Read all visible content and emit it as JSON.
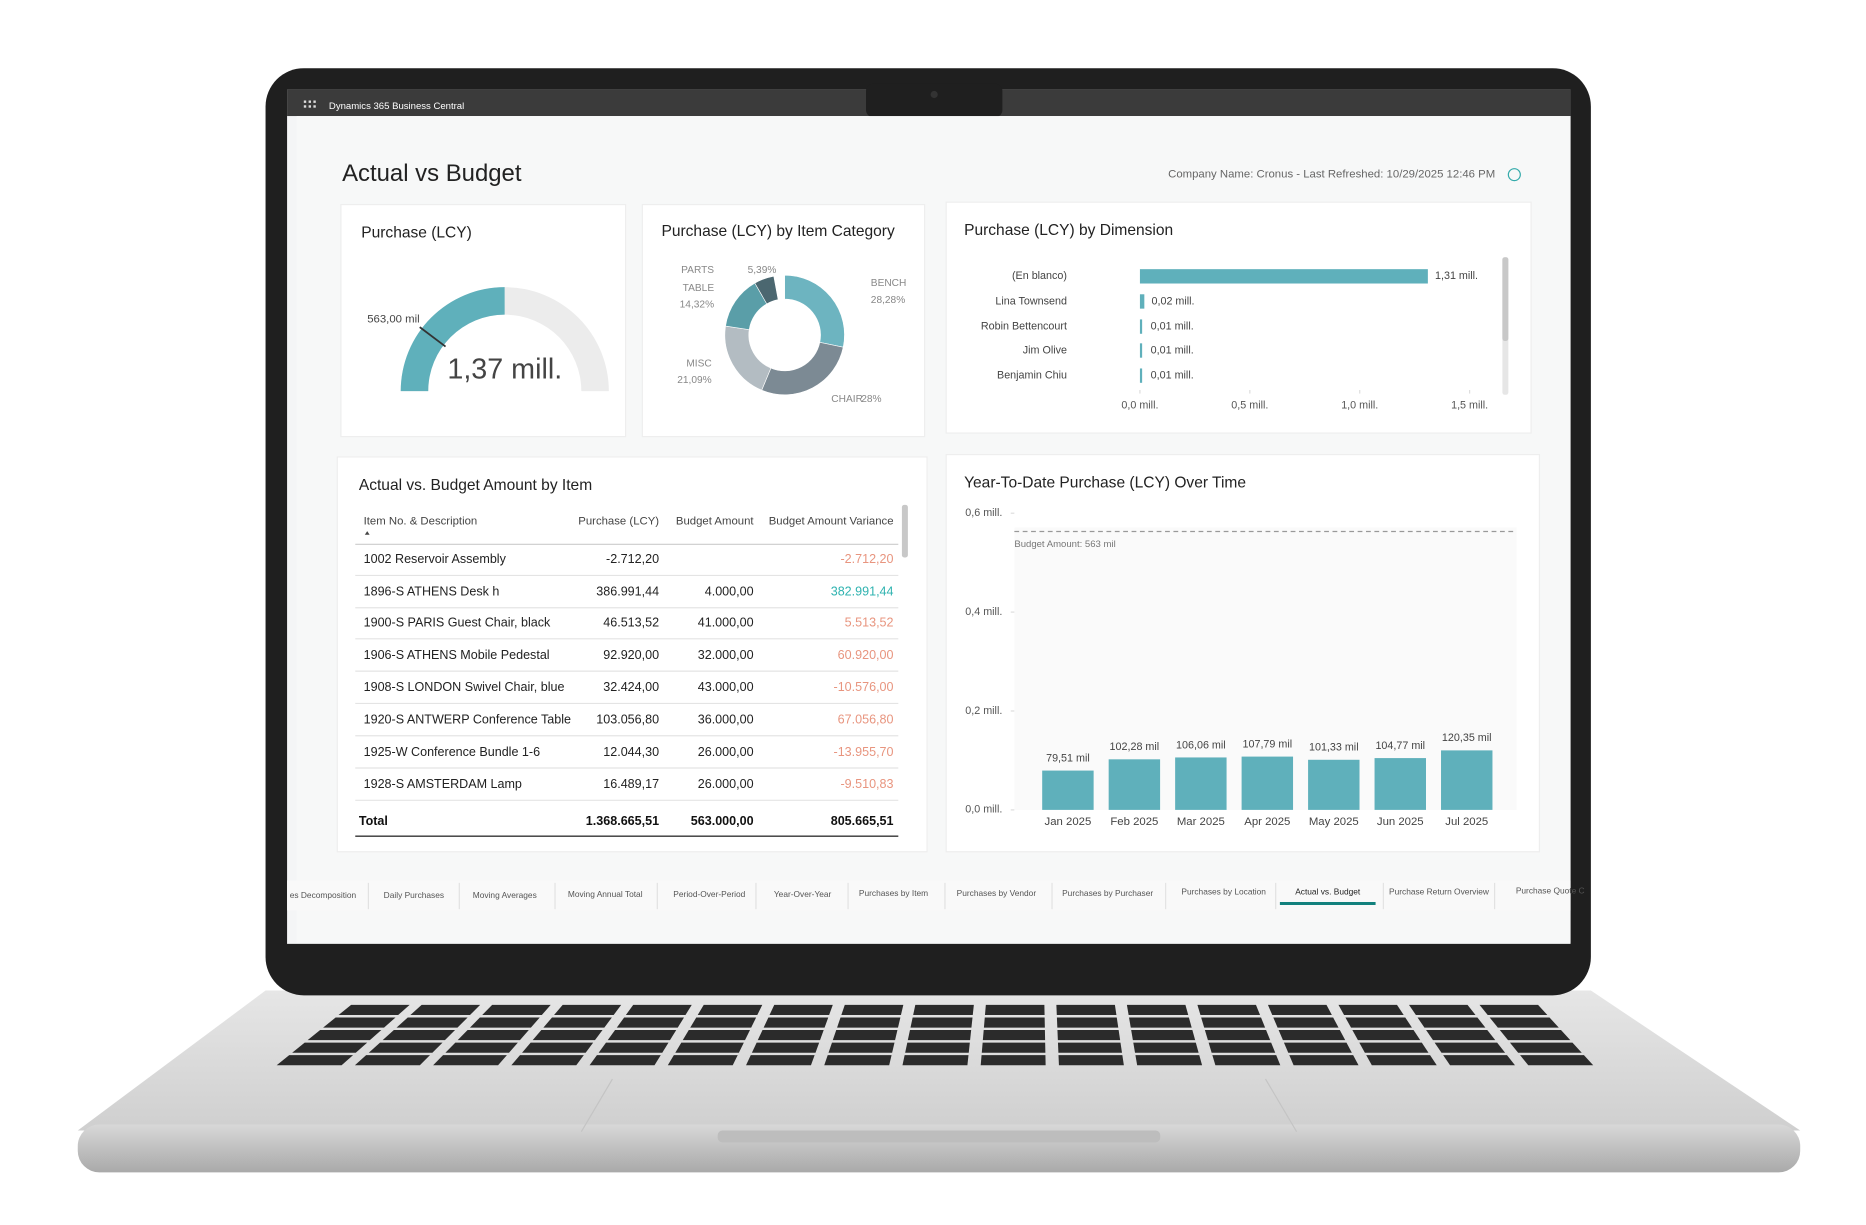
{
  "app_bar": {
    "title": "Dynamics 365 Business Central"
  },
  "header": {
    "title": "Actual vs Budget",
    "refresh_info": "Company Name: Cronus - Last Refreshed: 10/29/2025 12:46 PM"
  },
  "gauge": {
    "type": "gauge",
    "title": "Purchase (LCY)",
    "value": 1368665.51,
    "value_label": "1,37 mill.",
    "target": 563000,
    "target_label": "563,00 mil",
    "range": [
      0,
      2740000
    ],
    "color": "#5fb0bb"
  },
  "category_chart": {
    "type": "donut",
    "title": "Purchase (LCY) by Item Category",
    "categories": [
      "BENCH",
      "CHAIR",
      "MISC",
      "TABLE",
      "PARTS"
    ],
    "values": [
      28.28,
      28,
      21.09,
      14.32,
      5.39
    ],
    "value_labels": [
      "28,28%",
      "28%",
      "21,09%",
      "14,32%",
      "5,39%"
    ],
    "colors": [
      "#6db4c0",
      "#7c8a94",
      "#b3bcc2",
      "#5a9ea8",
      "#4b6770"
    ]
  },
  "dimension_chart": {
    "type": "bar",
    "title": "Purchase (LCY) by Dimension",
    "categories": [
      "(En blanco)",
      "Lina Townsend",
      "Robin Bettencourt",
      "Jim Olive",
      "Benjamin Chiu"
    ],
    "values": [
      1310000,
      20000,
      10000,
      10000,
      10000
    ],
    "value_labels": [
      "1,31 mill.",
      "0,02 mill.",
      "0,01 mill.",
      "0,01 mill.",
      "0,01 mill."
    ],
    "color": "#5fb0bb",
    "xlim": [
      0,
      1600000
    ],
    "xticks": [
      {
        "value": 0,
        "label": "0,0 mill."
      },
      {
        "value": 500000,
        "label": "0,5 mill."
      },
      {
        "value": 1000000,
        "label": "1,0 mill."
      },
      {
        "value": 1500000,
        "label": "1,5 mill."
      }
    ]
  },
  "table": {
    "title": "Actual vs. Budget Amount by Item",
    "columns": [
      "Item No. & Description",
      "Purchase (LCY)",
      "Budget Amount",
      "Budget Amount Variance"
    ],
    "rows": [
      [
        "1002 Reservoir Assembly",
        "-2.712,20",
        null,
        "-2.712,20"
      ],
      [
        "1896-S ATHENS Desk h",
        "386.991,44",
        "4.000,00",
        "382.991,44"
      ],
      [
        "1900-S PARIS Guest Chair, black",
        "46.513,52",
        "41.000,00",
        "5.513,52"
      ],
      [
        "1906-S ATHENS Mobile Pedestal",
        "92.920,00",
        "32.000,00",
        "60.920,00"
      ],
      [
        "1908-S LONDON Swivel Chair, blue",
        "32.424,00",
        "43.000,00",
        "-10.576,00"
      ],
      [
        "1920-S ANTWERP Conference Table",
        "103.056,80",
        "36.000,00",
        "67.056,80"
      ],
      [
        "1925-W Conference Bundle 1-6",
        "12.044,30",
        "26.000,00",
        "-13.955,70"
      ],
      [
        "1928-S AMSTERDAM Lamp",
        "16.489,17",
        "26.000,00",
        "-9.510,83"
      ]
    ],
    "total": [
      "Total",
      "1.368.665,51",
      "563.000,00",
      "805.665,51"
    ]
  },
  "ytd_chart": {
    "type": "bar",
    "title": "Year-To-Date Purchase (LCY) Over Time",
    "categories": [
      "Jan 2025",
      "Feb 2025",
      "Mar 2025",
      "Apr 2025",
      "May 2025",
      "Jun 2025",
      "Jul 2025"
    ],
    "values": [
      79510,
      102280,
      106060,
      107790,
      101330,
      104770,
      120350
    ],
    "value_labels": [
      "79,51 mil",
      "102,28 mil",
      "106,06 mil",
      "107,79 mil",
      "101,33 mil",
      "104,77 mil",
      "120,35 mil"
    ],
    "color": "#5fb0bb",
    "ylim": [
      0,
      600000
    ],
    "yticks": [
      {
        "value": 0,
        "label": "0,0 mill."
      },
      {
        "value": 200000,
        "label": "0,2 mill."
      },
      {
        "value": 400000,
        "label": "0,4 mill."
      },
      {
        "value": 600000,
        "label": "0,6 mill."
      }
    ],
    "budget": {
      "value": 563000,
      "label": "Budget Amount: 563 mil"
    }
  },
  "tabs": {
    "items": [
      "es Decomposition",
      "Daily Purchases",
      "Moving Averages",
      "Moving Annual Total",
      "Period-Over-Period",
      "Year-Over-Year",
      "Purchases by Item",
      "Purchases by Vendor",
      "Purchases by Purchaser",
      "Purchases by Location",
      "Actual vs. Budget",
      "Purchase Return Overview",
      "Purchase Quote C"
    ],
    "active": 10
  }
}
